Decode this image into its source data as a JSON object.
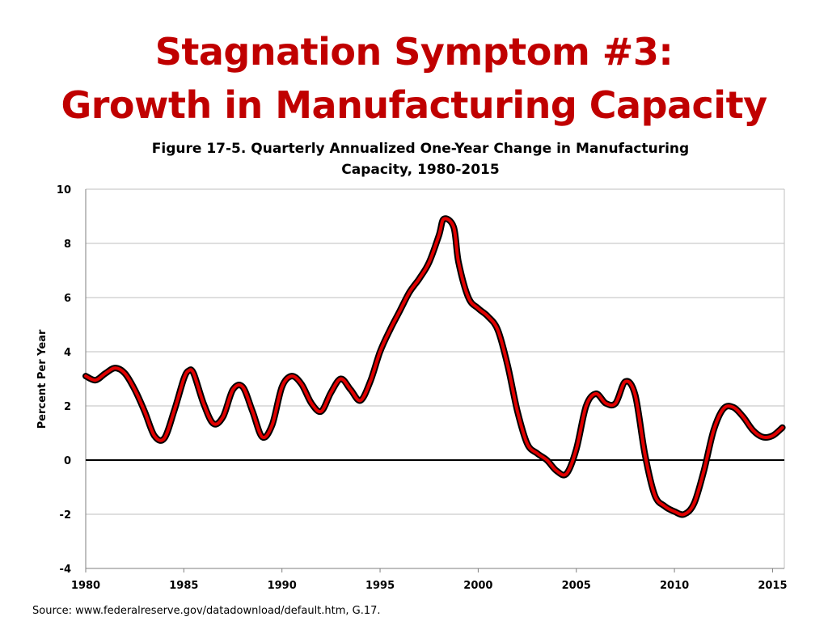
{
  "slide": {
    "title_line1": "Stagnation Symptom #3:",
    "title_line2": "Growth in Manufacturing Capacity",
    "source": "Source: www.federalreserve.gov/datadownload/default.htm, G.17."
  },
  "colors": {
    "title": "#c00000",
    "line_fill": "#e00000",
    "line_outline": "#000000",
    "gridline": "#bfbfbf",
    "zero_line": "#000000"
  },
  "chart_data": {
    "type": "line",
    "title_line1": "Figure 17-5. Quarterly Annualized One-Year Change in Manufacturing",
    "title_line2": "Capacity, 1980-2015",
    "xlabel": "",
    "ylabel": "Percent Per Year",
    "xlim": [
      1980,
      2015.6
    ],
    "ylim": [
      -4,
      10
    ],
    "x_ticks": [
      1980,
      1985,
      1990,
      1995,
      2000,
      2005,
      2010,
      2015
    ],
    "y_ticks": [
      -4,
      -2,
      0,
      2,
      4,
      6,
      8,
      10
    ],
    "grid": true,
    "legend": "none",
    "series": [
      {
        "name": "Manufacturing capacity change",
        "points": [
          [
            1980.0,
            3.1
          ],
          [
            1980.5,
            2.95
          ],
          [
            1981.0,
            3.2
          ],
          [
            1981.5,
            3.4
          ],
          [
            1982.0,
            3.2
          ],
          [
            1982.5,
            2.6
          ],
          [
            1983.0,
            1.8
          ],
          [
            1983.5,
            0.9
          ],
          [
            1984.0,
            0.8
          ],
          [
            1984.5,
            1.8
          ],
          [
            1985.0,
            3.0
          ],
          [
            1985.25,
            3.3
          ],
          [
            1985.5,
            3.2
          ],
          [
            1986.0,
            2.1
          ],
          [
            1986.5,
            1.35
          ],
          [
            1987.0,
            1.6
          ],
          [
            1987.5,
            2.6
          ],
          [
            1988.0,
            2.7
          ],
          [
            1988.5,
            1.8
          ],
          [
            1989.0,
            0.85
          ],
          [
            1989.5,
            1.3
          ],
          [
            1990.0,
            2.7
          ],
          [
            1990.5,
            3.1
          ],
          [
            1991.0,
            2.8
          ],
          [
            1991.5,
            2.1
          ],
          [
            1992.0,
            1.8
          ],
          [
            1992.5,
            2.5
          ],
          [
            1993.0,
            3.0
          ],
          [
            1993.5,
            2.6
          ],
          [
            1994.0,
            2.2
          ],
          [
            1994.5,
            2.9
          ],
          [
            1995.0,
            4.0
          ],
          [
            1995.5,
            4.8
          ],
          [
            1996.0,
            5.5
          ],
          [
            1996.5,
            6.2
          ],
          [
            1997.0,
            6.7
          ],
          [
            1997.5,
            7.3
          ],
          [
            1998.0,
            8.3
          ],
          [
            1998.25,
            8.9
          ],
          [
            1998.75,
            8.6
          ],
          [
            1999.0,
            7.3
          ],
          [
            1999.5,
            6.0
          ],
          [
            2000.0,
            5.6
          ],
          [
            2000.5,
            5.3
          ],
          [
            2001.0,
            4.8
          ],
          [
            2001.5,
            3.5
          ],
          [
            2002.0,
            1.8
          ],
          [
            2002.5,
            0.6
          ],
          [
            2003.0,
            0.25
          ],
          [
            2003.5,
            0.0
          ],
          [
            2004.0,
            -0.4
          ],
          [
            2004.5,
            -0.5
          ],
          [
            2005.0,
            0.4
          ],
          [
            2005.5,
            2.0
          ],
          [
            2006.0,
            2.45
          ],
          [
            2006.5,
            2.1
          ],
          [
            2007.0,
            2.1
          ],
          [
            2007.5,
            2.9
          ],
          [
            2008.0,
            2.4
          ],
          [
            2008.5,
            0.2
          ],
          [
            2009.0,
            -1.3
          ],
          [
            2009.5,
            -1.7
          ],
          [
            2010.0,
            -1.9
          ],
          [
            2010.5,
            -2.0
          ],
          [
            2011.0,
            -1.6
          ],
          [
            2011.5,
            -0.4
          ],
          [
            2012.0,
            1.1
          ],
          [
            2012.5,
            1.9
          ],
          [
            2013.0,
            1.95
          ],
          [
            2013.5,
            1.6
          ],
          [
            2014.0,
            1.1
          ],
          [
            2014.5,
            0.85
          ],
          [
            2015.0,
            0.9
          ],
          [
            2015.5,
            1.2
          ]
        ]
      }
    ]
  }
}
